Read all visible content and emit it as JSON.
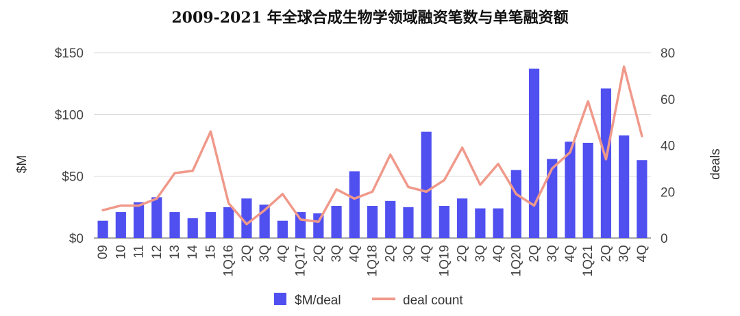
{
  "chart_data": {
    "type": "bar+line",
    "title": "2009-2021 年全球合成生物学领域融资笔数与单笔融资额",
    "categories": [
      "09",
      "10",
      "11",
      "12",
      "13",
      "14",
      "15",
      "1Q16",
      "2Q",
      "3Q",
      "4Q",
      "1Q17",
      "2Q",
      "3Q",
      "4Q",
      "1Q18",
      "2Q",
      "3Q",
      "4Q",
      "1Q19",
      "2Q",
      "3Q",
      "4Q",
      "1Q20",
      "2Q",
      "3Q",
      "4Q",
      "1Q21",
      "2Q",
      "3Q",
      "4Q"
    ],
    "series": [
      {
        "name": "$M/deal",
        "kind": "bar",
        "axis": "left",
        "color": "#5050f0",
        "values": [
          14,
          21,
          29,
          33,
          21,
          16,
          21,
          25,
          32,
          27,
          14,
          21,
          20,
          26,
          54,
          26,
          30,
          25,
          86,
          26,
          32,
          24,
          24,
          55,
          137,
          64,
          78,
          77,
          121,
          83,
          63
        ]
      },
      {
        "name": "deal count",
        "kind": "line",
        "axis": "right",
        "color": "#f0998a",
        "values": [
          12,
          14,
          14,
          17,
          28,
          29,
          46,
          15,
          6,
          12,
          19,
          8,
          7,
          21,
          17,
          20,
          36,
          22,
          20,
          25,
          39,
          23,
          32,
          19,
          14,
          30,
          37,
          59,
          34,
          74,
          44
        ]
      }
    ],
    "left_axis": {
      "label": "$M",
      "ylim": [
        0,
        150
      ],
      "ticks": [
        0,
        50,
        100,
        150
      ],
      "tick_labels": [
        "$0",
        "$50",
        "$100",
        "$150"
      ]
    },
    "right_axis": {
      "label": "deals",
      "ylim": [
        0,
        80
      ],
      "ticks": [
        0,
        20,
        40,
        60,
        80
      ],
      "tick_labels": [
        "0",
        "20",
        "40",
        "60",
        "80"
      ]
    },
    "grid": true,
    "legend": {
      "placement": "bottom-center",
      "entries": [
        "$M/deal",
        "deal count"
      ]
    }
  }
}
